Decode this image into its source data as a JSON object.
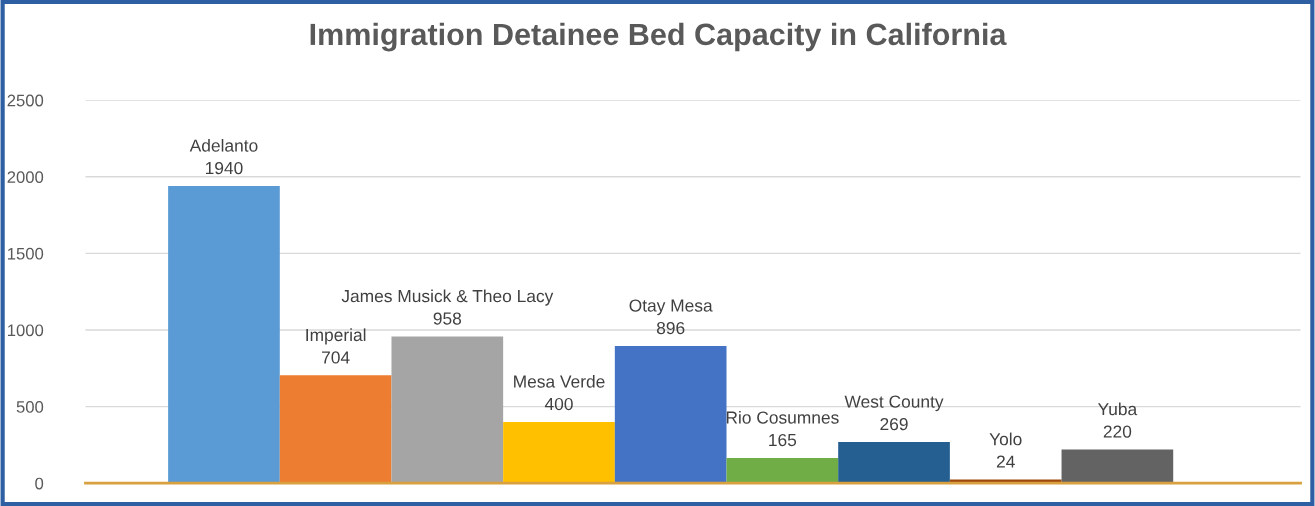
{
  "chart_data": {
    "type": "bar",
    "title": "Immigration Detainee Bed Capacity in California",
    "categories": [
      "Adelanto",
      "Imperial",
      "James Musick & Theo Lacy",
      "Mesa Verde",
      "Otay Mesa",
      "Rio Cosumnes",
      "West County",
      "Yolo",
      "Yuba"
    ],
    "values": [
      1940,
      704,
      958,
      400,
      896,
      165,
      269,
      24,
      220
    ],
    "colors": [
      "#5b9bd5",
      "#ed7d31",
      "#a5a5a5",
      "#ffc000",
      "#4472c4",
      "#70ad47",
      "#255e91",
      "#9e480e",
      "#636363"
    ],
    "ylim": [
      0,
      2500
    ],
    "yticks": [
      0,
      500,
      1000,
      1500,
      2000,
      2500
    ],
    "grid": "y",
    "data_labels": true,
    "tick_labels": "y"
  }
}
